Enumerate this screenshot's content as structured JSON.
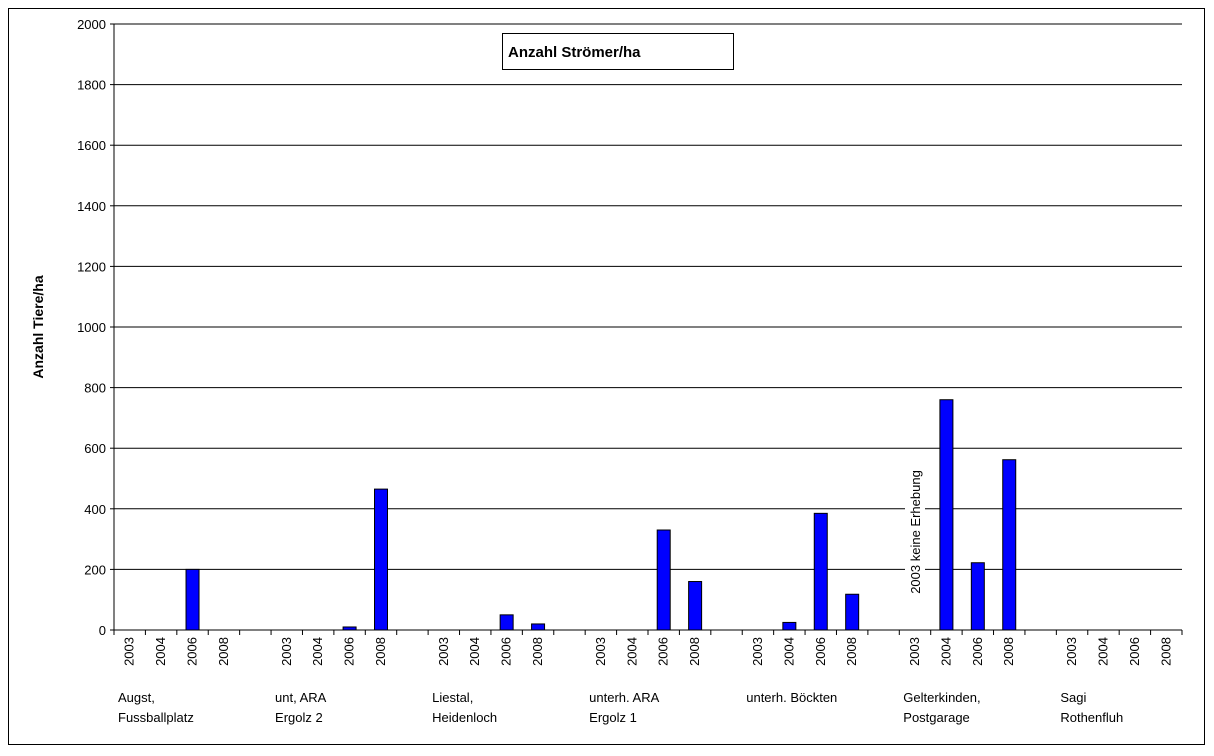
{
  "chart_data": {
    "type": "bar",
    "title": "Anzahl Strömer/ha",
    "y_label": "Anzahl Tiere/ha",
    "categories": [
      "2003",
      "2004",
      "2006",
      "2008",
      null,
      "2003",
      "2004",
      "2006",
      "2008",
      null,
      "2003",
      "2004",
      "2006",
      "2008",
      null,
      "2003",
      "2004",
      "2006",
      "2008",
      null,
      "2003",
      "2004",
      "2006",
      "2008",
      null,
      "2003",
      "2004",
      "2006",
      "2008",
      null,
      "2003",
      "2004",
      "2006",
      "2008"
    ],
    "values": [
      0,
      0,
      200,
      0,
      null,
      0,
      0,
      10,
      465,
      null,
      0,
      0,
      50,
      20,
      null,
      0,
      0,
      330,
      160,
      null,
      0,
      25,
      385,
      118,
      null,
      null,
      760,
      222,
      562,
      null,
      0,
      0,
      0,
      0
    ],
    "groups": [
      {
        "lines": [
          "Augst,",
          "Fussballplatz"
        ],
        "start": 0
      },
      {
        "lines": [
          "unt, ARA",
          "Ergolz 2"
        ],
        "start": 5
      },
      {
        "lines": [
          "Liestal,",
          "Heidenloch"
        ],
        "start": 10
      },
      {
        "lines": [
          "unterh. ARA",
          "Ergolz 1"
        ],
        "start": 15
      },
      {
        "lines": [
          "unterh. Böckten"
        ],
        "start": 20
      },
      {
        "lines": [
          "Gelterkinden,",
          "Postgarage"
        ],
        "start": 25
      },
      {
        "lines": [
          "Sagi",
          "Rothenfluh"
        ],
        "start": 30
      }
    ],
    "annotation": {
      "text": "2003 keine Erhebung",
      "index": 25
    },
    "color": "#0000ff",
    "ylim": [
      0,
      2000
    ],
    "yticks": [
      0,
      200,
      400,
      600,
      800,
      1000,
      1200,
      1400,
      1600,
      1800,
      2000
    ],
    "grid": true
  }
}
